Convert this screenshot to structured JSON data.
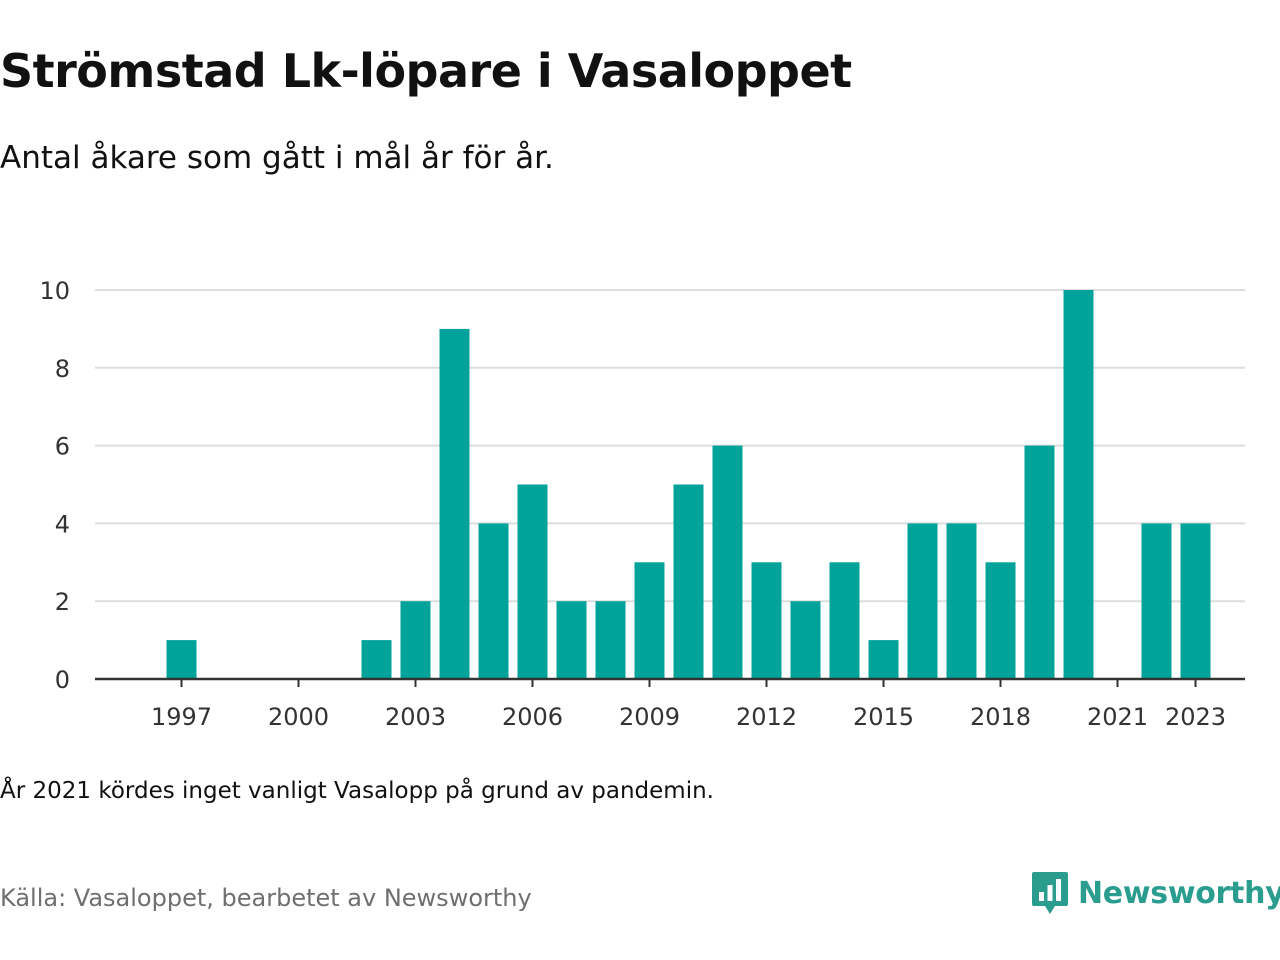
{
  "header": {
    "title": "Strömstad Lk-löpare i Vasaloppet",
    "subtitle": "Antal åkare som gått i mål år för år."
  },
  "footer": {
    "note": "År 2021 kördes inget vanligt Vasalopp på grund av pandemin.",
    "source": "Källa: Vasaloppet, bearbetet av Newsworthy",
    "brand": "Newsworthy"
  },
  "colors": {
    "bar": "#00a39a",
    "grid": "#dddddd",
    "axis": "#333333",
    "brand": "#2a9d8f",
    "source_text": "#6f6f6f"
  },
  "icons": {
    "brand_logo": "newsworthy-chart-bubble-icon"
  },
  "chart_data": {
    "type": "bar",
    "title": "Strömstad Lk-löpare i Vasaloppet",
    "subtitle": "Antal åkare som gått i mål år för år.",
    "xlabel": "",
    "ylabel": "",
    "x": [
      1996,
      1997,
      1998,
      1999,
      2000,
      2001,
      2002,
      2003,
      2004,
      2005,
      2006,
      2007,
      2008,
      2009,
      2010,
      2011,
      2012,
      2013,
      2014,
      2015,
      2016,
      2017,
      2018,
      2019,
      2020,
      2021,
      2022,
      2023
    ],
    "values": [
      0,
      1,
      0,
      0,
      0,
      0,
      1,
      2,
      9,
      4,
      5,
      2,
      2,
      3,
      5,
      6,
      3,
      2,
      3,
      1,
      4,
      4,
      3,
      6,
      10,
      0,
      4,
      4
    ],
    "x_tick_labels": [
      "1997",
      "2000",
      "2003",
      "2006",
      "2009",
      "2012",
      "2015",
      "2018",
      "2021",
      "2023"
    ],
    "y_ticks": [
      0,
      2,
      4,
      6,
      8,
      10
    ],
    "ylim": [
      0,
      10
    ],
    "grid": "horizontal",
    "legend": "none"
  }
}
